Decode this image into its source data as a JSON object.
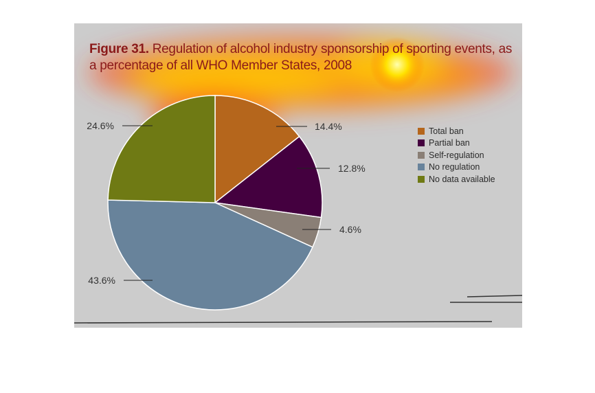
{
  "title": {
    "figure": "Figure 31.",
    "text": "Regulation of alcohol industry sponsorship of sporting events, as a percentage of all WHO Member States, 2008"
  },
  "chart_data": {
    "type": "pie",
    "categories": [
      "Total ban",
      "Partial ban",
      "Self-regulation",
      "No regulation",
      "No data available"
    ],
    "values": [
      14.4,
      12.8,
      4.6,
      43.6,
      24.6
    ],
    "labels": [
      "14.4%",
      "12.8%",
      "4.6%",
      "43.6%",
      "24.6%"
    ],
    "colors": [
      "#b5661c",
      "#44003f",
      "#8a7f76",
      "#68839b",
      "#6f7a14"
    ],
    "legend_position": "right"
  }
}
